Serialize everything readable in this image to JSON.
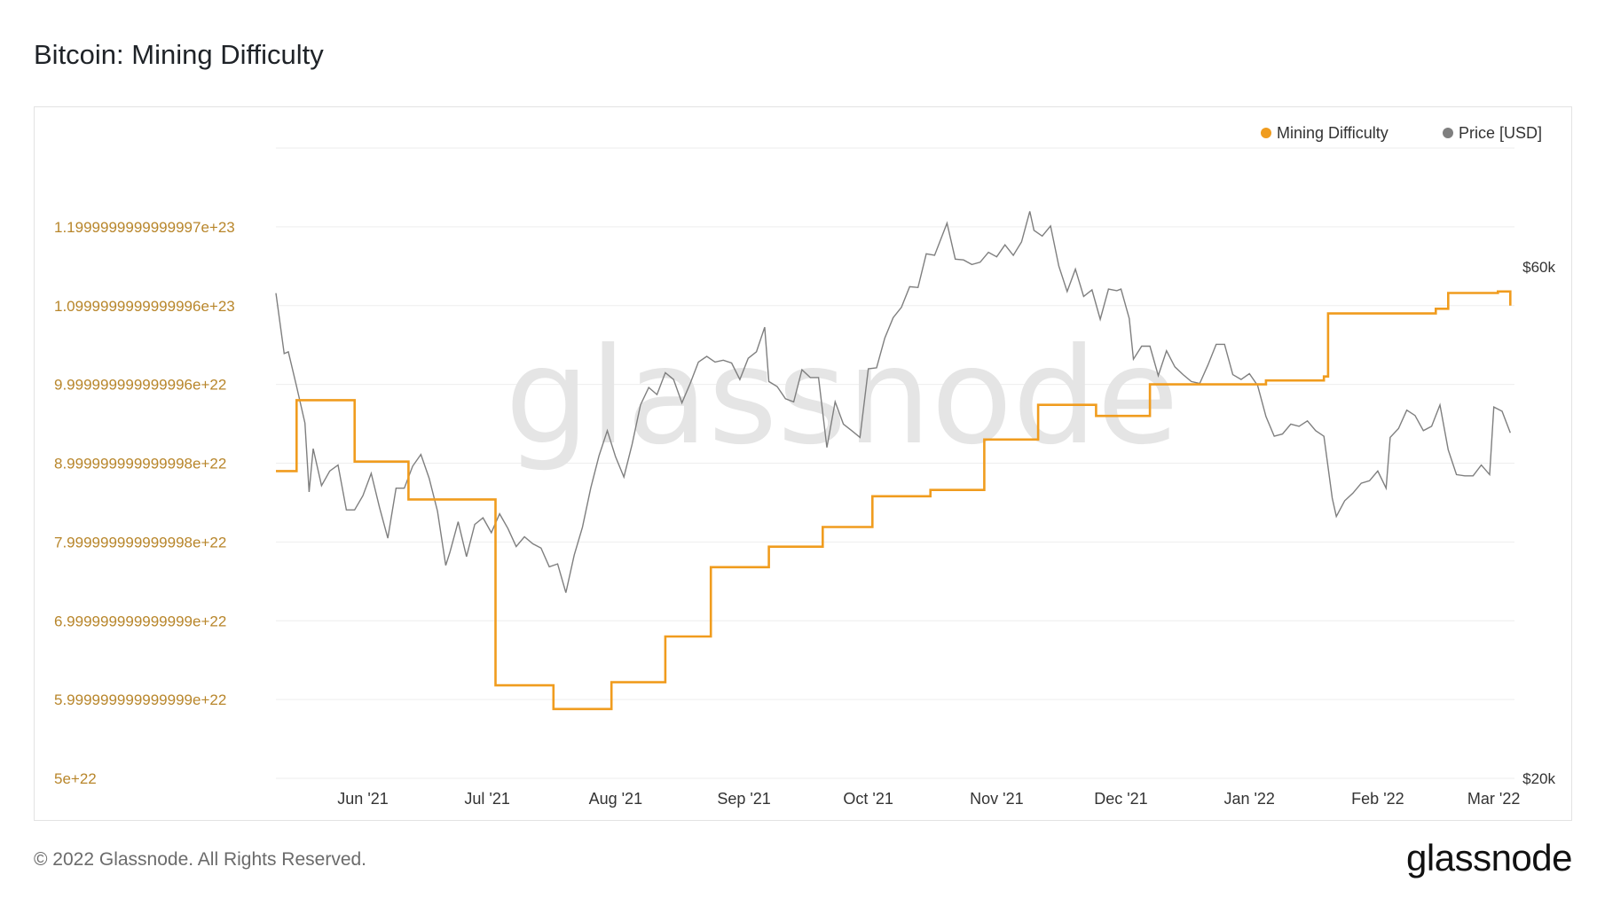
{
  "title": "Bitcoin: Mining Difficulty",
  "footer": "© 2022 Glassnode. All Rights Reserved.",
  "brand": "glassnode",
  "watermark": "glassnode",
  "colors": {
    "difficulty": "#f09c1e",
    "price": "#7f7f7f",
    "left_axis_text": "#b8862b",
    "grid": "#eeeeee"
  },
  "chart_data": {
    "type": "line",
    "legend": [
      "Mining Difficulty",
      "Price [USD]"
    ],
    "legend_placement": "top-right",
    "grid": true,
    "left_axis": {
      "ticks": [
        {
          "value": 5e+22,
          "label": "5e+22"
        },
        {
          "value": 6e+22,
          "label": "5.999999999999999e+22"
        },
        {
          "value": 7e+22,
          "label": "6.999999999999999e+22"
        },
        {
          "value": 8e+22,
          "label": "7.999999999999998e+22"
        },
        {
          "value": 9e+22,
          "label": "8.999999999999998e+22"
        },
        {
          "value": 1e+23,
          "label": "9.999999999999996e+22"
        },
        {
          "value": 1.1e+23,
          "label": "1.0999999999999996e+23"
        },
        {
          "value": 1.2e+23,
          "label": "1.1999999999999997e+23"
        }
      ],
      "range": [
        5e+22,
        1.3e+23
      ]
    },
    "right_axis": {
      "ticks": [
        {
          "value": 20000,
          "label": "$20k"
        },
        {
          "value": 60000,
          "label": "$60k"
        }
      ],
      "scale": "log"
    },
    "x_axis": {
      "range": [
        "2021-05-11",
        "2022-03-06"
      ],
      "ticks": [
        {
          "date": "2021-06-01",
          "label": "Jun '21"
        },
        {
          "date": "2021-07-01",
          "label": "Jul '21"
        },
        {
          "date": "2021-08-01",
          "label": "Aug '21"
        },
        {
          "date": "2021-09-01",
          "label": "Sep '21"
        },
        {
          "date": "2021-10-01",
          "label": "Oct '21"
        },
        {
          "date": "2021-11-01",
          "label": "Nov '21"
        },
        {
          "date": "2021-12-01",
          "label": "Dec '21"
        },
        {
          "date": "2022-01-01",
          "label": "Jan '22"
        },
        {
          "date": "2022-02-01",
          "label": "Feb '22"
        },
        {
          "date": "2022-03-01",
          "label": "Mar '22"
        }
      ]
    },
    "series": [
      {
        "name": "Mining Difficulty",
        "step": true,
        "points": [
          [
            "2021-05-11",
            8.9e+22
          ],
          [
            "2021-05-16",
            9.8e+22
          ],
          [
            "2021-05-30",
            9.02e+22
          ],
          [
            "2021-06-12",
            8.54e+22
          ],
          [
            "2021-07-03",
            6.18e+22
          ],
          [
            "2021-07-17",
            5.88e+22
          ],
          [
            "2021-07-31",
            6.22e+22
          ],
          [
            "2021-08-13",
            6.8e+22
          ],
          [
            "2021-08-24",
            7.68e+22
          ],
          [
            "2021-09-07",
            7.94e+22
          ],
          [
            "2021-09-20",
            8.19e+22
          ],
          [
            "2021-10-02",
            8.58e+22
          ],
          [
            "2021-10-16",
            8.66e+22
          ],
          [
            "2021-10-29",
            9.3e+22
          ],
          [
            "2021-11-11",
            9.74e+22
          ],
          [
            "2021-11-25",
            9.6e+22
          ],
          [
            "2021-12-08",
            1e+23
          ],
          [
            "2021-12-22",
            1e+23
          ],
          [
            "2022-01-05",
            1.005e+23
          ],
          [
            "2022-01-19",
            1.01e+23
          ],
          [
            "2022-01-20",
            1.09e+23
          ],
          [
            "2022-02-02",
            1.09e+23
          ],
          [
            "2022-02-15",
            1.096e+23
          ],
          [
            "2022-02-16",
            1.096e+23
          ],
          [
            "2022-02-18",
            1.116e+23
          ],
          [
            "2022-03-01",
            1.116e+23
          ],
          [
            "2022-03-02",
            1.118e+23
          ],
          [
            "2022-03-04",
            1.118e+23
          ],
          [
            "2022-03-05",
            1.1e+23
          ]
        ]
      },
      {
        "name": "Price [USD]",
        "points": [
          [
            "2021-05-11",
            56700
          ],
          [
            "2021-05-13",
            49800
          ],
          [
            "2021-05-14",
            50000
          ],
          [
            "2021-05-16",
            46400
          ],
          [
            "2021-05-18",
            42900
          ],
          [
            "2021-05-19",
            37000
          ],
          [
            "2021-05-20",
            40600
          ],
          [
            "2021-05-22",
            37500
          ],
          [
            "2021-05-24",
            38700
          ],
          [
            "2021-05-26",
            39200
          ],
          [
            "2021-05-28",
            35600
          ],
          [
            "2021-05-30",
            35600
          ],
          [
            "2021-06-01",
            36700
          ],
          [
            "2021-06-03",
            38500
          ],
          [
            "2021-06-05",
            35800
          ],
          [
            "2021-06-07",
            33500
          ],
          [
            "2021-06-09",
            37300
          ],
          [
            "2021-06-11",
            37300
          ],
          [
            "2021-06-13",
            39100
          ],
          [
            "2021-06-15",
            40100
          ],
          [
            "2021-06-17",
            38100
          ],
          [
            "2021-06-19",
            35500
          ],
          [
            "2021-06-21",
            31600
          ],
          [
            "2021-06-22",
            32500
          ],
          [
            "2021-06-24",
            34700
          ],
          [
            "2021-06-26",
            32200
          ],
          [
            "2021-06-28",
            34500
          ],
          [
            "2021-06-30",
            35000
          ],
          [
            "2021-07-02",
            33900
          ],
          [
            "2021-07-04",
            35300
          ],
          [
            "2021-07-06",
            34200
          ],
          [
            "2021-07-08",
            32900
          ],
          [
            "2021-07-10",
            33600
          ],
          [
            "2021-07-12",
            33100
          ],
          [
            "2021-07-14",
            32800
          ],
          [
            "2021-07-16",
            31500
          ],
          [
            "2021-07-18",
            31700
          ],
          [
            "2021-07-20",
            29800
          ],
          [
            "2021-07-22",
            32300
          ],
          [
            "2021-07-24",
            34300
          ],
          [
            "2021-07-26",
            37300
          ],
          [
            "2021-07-28",
            40000
          ],
          [
            "2021-07-30",
            42200
          ],
          [
            "2021-08-01",
            39900
          ],
          [
            "2021-08-03",
            38200
          ],
          [
            "2021-08-05",
            41000
          ],
          [
            "2021-08-07",
            44600
          ],
          [
            "2021-08-09",
            46300
          ],
          [
            "2021-08-11",
            45600
          ],
          [
            "2021-08-13",
            47800
          ],
          [
            "2021-08-15",
            47100
          ],
          [
            "2021-08-17",
            44800
          ],
          [
            "2021-08-19",
            46700
          ],
          [
            "2021-08-21",
            48900
          ],
          [
            "2021-08-23",
            49500
          ],
          [
            "2021-08-25",
            48900
          ],
          [
            "2021-08-27",
            49100
          ],
          [
            "2021-08-29",
            48800
          ],
          [
            "2021-08-31",
            47100
          ],
          [
            "2021-09-02",
            49300
          ],
          [
            "2021-09-04",
            50000
          ],
          [
            "2021-09-06",
            52700
          ],
          [
            "2021-09-07",
            46900
          ],
          [
            "2021-09-09",
            46400
          ],
          [
            "2021-09-11",
            45200
          ],
          [
            "2021-09-13",
            44900
          ],
          [
            "2021-09-15",
            48100
          ],
          [
            "2021-09-17",
            47300
          ],
          [
            "2021-09-19",
            47300
          ],
          [
            "2021-09-21",
            40700
          ],
          [
            "2021-09-23",
            44900
          ],
          [
            "2021-09-25",
            42800
          ],
          [
            "2021-09-27",
            42200
          ],
          [
            "2021-09-29",
            41600
          ],
          [
            "2021-10-01",
            48200
          ],
          [
            "2021-10-03",
            48300
          ],
          [
            "2021-10-05",
            51500
          ],
          [
            "2021-10-07",
            53800
          ],
          [
            "2021-10-09",
            55000
          ],
          [
            "2021-10-11",
            57500
          ],
          [
            "2021-10-13",
            57400
          ],
          [
            "2021-10-15",
            61700
          ],
          [
            "2021-10-17",
            61500
          ],
          [
            "2021-10-20",
            65900
          ],
          [
            "2021-10-22",
            61000
          ],
          [
            "2021-10-24",
            60900
          ],
          [
            "2021-10-26",
            60300
          ],
          [
            "2021-10-28",
            60600
          ],
          [
            "2021-10-30",
            61900
          ],
          [
            "2021-11-01",
            61300
          ],
          [
            "2021-11-03",
            62900
          ],
          [
            "2021-11-05",
            61500
          ],
          [
            "2021-11-07",
            63300
          ],
          [
            "2021-11-09",
            67600
          ],
          [
            "2021-11-10",
            64900
          ],
          [
            "2021-11-12",
            64100
          ],
          [
            "2021-11-14",
            65500
          ],
          [
            "2021-11-16",
            60100
          ],
          [
            "2021-11-18",
            56900
          ],
          [
            "2021-11-20",
            59700
          ],
          [
            "2021-11-22",
            56300
          ],
          [
            "2021-11-24",
            57100
          ],
          [
            "2021-11-26",
            53600
          ],
          [
            "2021-11-28",
            57200
          ],
          [
            "2021-11-30",
            57000
          ],
          [
            "2021-12-01",
            57200
          ],
          [
            "2021-12-03",
            53700
          ],
          [
            "2021-12-04",
            49200
          ],
          [
            "2021-12-06",
            50600
          ],
          [
            "2021-12-08",
            50600
          ],
          [
            "2021-12-10",
            47500
          ],
          [
            "2021-12-12",
            50100
          ],
          [
            "2021-12-14",
            48400
          ],
          [
            "2021-12-16",
            47600
          ],
          [
            "2021-12-18",
            46900
          ],
          [
            "2021-12-20",
            46700
          ],
          [
            "2021-12-22",
            48600
          ],
          [
            "2021-12-24",
            50800
          ],
          [
            "2021-12-26",
            50800
          ],
          [
            "2021-12-28",
            47600
          ],
          [
            "2021-12-30",
            47100
          ],
          [
            "2022-01-01",
            47700
          ],
          [
            "2022-01-03",
            46500
          ],
          [
            "2022-01-05",
            43500
          ],
          [
            "2022-01-07",
            41700
          ],
          [
            "2022-01-09",
            41900
          ],
          [
            "2022-01-11",
            42800
          ],
          [
            "2022-01-13",
            42600
          ],
          [
            "2022-01-15",
            43100
          ],
          [
            "2022-01-17",
            42200
          ],
          [
            "2022-01-19",
            41700
          ],
          [
            "2022-01-21",
            36500
          ],
          [
            "2022-01-22",
            35100
          ],
          [
            "2022-01-24",
            36300
          ],
          [
            "2022-01-26",
            36900
          ],
          [
            "2022-01-28",
            37700
          ],
          [
            "2022-01-30",
            37900
          ],
          [
            "2022-02-01",
            38700
          ],
          [
            "2022-02-03",
            37300
          ],
          [
            "2022-02-04",
            41600
          ],
          [
            "2022-02-06",
            42400
          ],
          [
            "2022-02-08",
            44100
          ],
          [
            "2022-02-10",
            43600
          ],
          [
            "2022-02-12",
            42200
          ],
          [
            "2022-02-14",
            42600
          ],
          [
            "2022-02-16",
            44600
          ],
          [
            "2022-02-18",
            40500
          ],
          [
            "2022-02-20",
            38400
          ],
          [
            "2022-02-22",
            38300
          ],
          [
            "2022-02-24",
            38300
          ],
          [
            "2022-02-26",
            39200
          ],
          [
            "2022-02-28",
            38400
          ],
          [
            "2022-03-01",
            44400
          ],
          [
            "2022-03-03",
            44000
          ],
          [
            "2022-03-05",
            42000
          ]
        ]
      }
    ]
  }
}
